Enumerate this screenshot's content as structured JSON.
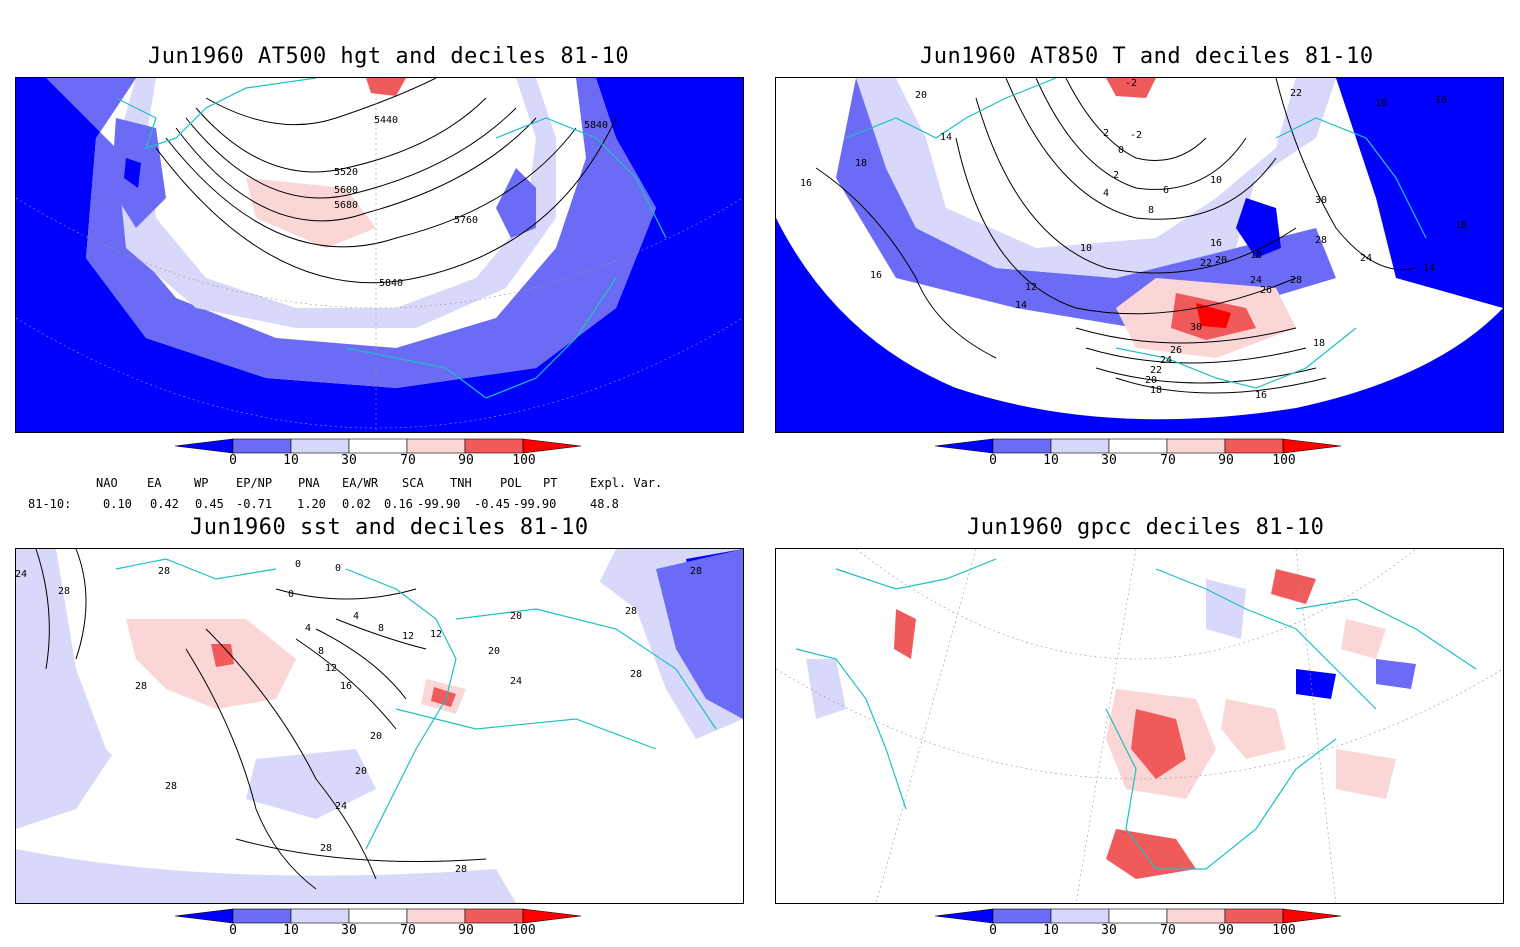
{
  "panels": [
    {
      "id": "p500",
      "title": "Jun1960 AT500 hgt and deciles 81-10",
      "contour_labels": [
        "5440",
        "5520",
        "5600",
        "5680",
        "5760",
        "5840",
        "5840"
      ]
    },
    {
      "id": "p850",
      "title": "Jun1960 AT850 T and deciles 81-10",
      "contour_labels": [
        "-2",
        "2",
        "0",
        "-2",
        "4",
        "2",
        "6",
        "8",
        "10",
        "10",
        "12",
        "14",
        "16",
        "18",
        "20",
        "22",
        "24",
        "26",
        "28",
        "30",
        "30",
        "28",
        "26",
        "24",
        "22",
        "20",
        "18",
        "18",
        "16",
        "16",
        "16",
        "18",
        "14",
        "14",
        "18",
        "20",
        "24",
        "16",
        "18",
        "22"
      ]
    },
    {
      "id": "psst",
      "title": "Jun1960 sst and deciles 81-10",
      "contour_labels": [
        "24",
        "28",
        "28",
        "28",
        "28",
        "24",
        "20",
        "20",
        "16",
        "12",
        "8",
        "4",
        "0",
        "4",
        "8",
        "12",
        "12",
        "20",
        "20",
        "24",
        "28",
        "28",
        "28",
        "28",
        "28",
        "0",
        "0"
      ]
    },
    {
      "id": "pgpcc",
      "title": "Jun1960 gpcc deciles 81-10",
      "contour_labels": []
    }
  ],
  "colorbar": {
    "labels": [
      "0",
      "10",
      "30",
      "70",
      "90",
      "100"
    ],
    "colors": [
      "#0000ff",
      "#6b6bf5",
      "#d8d8fb",
      "#ffffff",
      "#fbd6d6",
      "#f05a5a",
      "#ff0000"
    ]
  },
  "teleconnection": {
    "headers": [
      "NAO",
      "EA",
      "WP",
      "EP/NP",
      "PNA",
      "EA/WR",
      "SCA",
      "TNH",
      "POL",
      "PT",
      "Expl. Var."
    ],
    "row_label": "81-10:",
    "values": [
      "0.10",
      "0.42",
      "0.45",
      "-0.71",
      "1.20",
      "0.02",
      "0.16",
      "-99.90",
      "-0.45",
      "-99.90",
      "48.8"
    ]
  }
}
